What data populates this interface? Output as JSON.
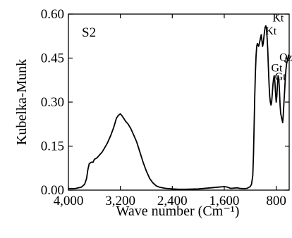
{
  "chart_data": {
    "type": "line",
    "title": "",
    "panel_label": "S2",
    "xlabel": "Wave number (Cm⁻¹)",
    "ylabel": "Kubelka-Munk",
    "xlim": [
      4000,
      600
    ],
    "ylim": [
      0,
      0.6
    ],
    "x_reversed": true,
    "grid": false,
    "x_ticks": [
      4000,
      3200,
      2400,
      1600,
      800
    ],
    "x_tick_labels": [
      "4,000",
      "3,200",
      "2,400",
      "1,600",
      "800"
    ],
    "y_ticks": [
      0,
      0.15,
      0.3,
      0.45,
      0.6
    ],
    "y_tick_labels": [
      "0.00",
      "0.15",
      "0.30",
      "0.45",
      "0.60"
    ],
    "annotations": [
      {
        "text": "Kt",
        "x": 770,
        "y": 0.575
      },
      {
        "text": "Kt",
        "x": 880,
        "y": 0.53
      },
      {
        "text": "Gt",
        "x": 790,
        "y": 0.405
      },
      {
        "text": "Gt",
        "x": 735,
        "y": 0.375
      },
      {
        "text": "Qz",
        "x": 650,
        "y": 0.44
      }
    ],
    "series": [
      {
        "color": "#000000",
        "x": [
          4000,
          3900,
          3800,
          3750,
          3720,
          3700,
          3680,
          3650,
          3620,
          3600,
          3560,
          3520,
          3480,
          3440,
          3400,
          3350,
          3300,
          3260,
          3230,
          3200,
          3180,
          3150,
          3120,
          3080,
          3040,
          3000,
          2950,
          2900,
          2850,
          2800,
          2750,
          2700,
          2650,
          2600,
          2550,
          2500,
          2450,
          2400,
          2300,
          2200,
          2000,
          1800,
          1700,
          1600,
          1550,
          1500,
          1450,
          1400,
          1360,
          1300,
          1250,
          1200,
          1180,
          1160,
          1150,
          1140,
          1130,
          1120,
          1110,
          1100,
          1090,
          1080,
          1070,
          1060,
          1050,
          1040,
          1030,
          1020,
          1010,
          1000,
          990,
          980,
          970,
          960,
          950,
          940,
          930,
          920,
          910,
          900,
          890,
          880,
          870,
          860,
          850,
          840,
          830,
          820,
          810,
          800,
          790,
          780,
          770,
          760,
          750,
          740,
          730,
          720,
          710,
          700,
          690,
          680,
          670,
          660,
          650,
          640,
          630,
          620,
          610,
          600
        ],
        "y": [
          0.005,
          0.005,
          0.01,
          0.02,
          0.04,
          0.07,
          0.09,
          0.095,
          0.095,
          0.105,
          0.11,
          0.12,
          0.13,
          0.145,
          0.16,
          0.185,
          0.215,
          0.245,
          0.255,
          0.26,
          0.255,
          0.245,
          0.235,
          0.225,
          0.21,
          0.19,
          0.165,
          0.13,
          0.095,
          0.065,
          0.04,
          0.025,
          0.015,
          0.01,
          0.008,
          0.006,
          0.005,
          0.004,
          0.003,
          0.003,
          0.004,
          0.008,
          0.01,
          0.012,
          0.01,
          0.006,
          0.007,
          0.008,
          0.006,
          0.005,
          0.006,
          0.012,
          0.02,
          0.05,
          0.12,
          0.22,
          0.32,
          0.4,
          0.46,
          0.49,
          0.5,
          0.495,
          0.49,
          0.5,
          0.51,
          0.52,
          0.53,
          0.51,
          0.49,
          0.5,
          0.52,
          0.54,
          0.555,
          0.56,
          0.55,
          0.52,
          0.48,
          0.42,
          0.36,
          0.32,
          0.3,
          0.29,
          0.3,
          0.33,
          0.36,
          0.38,
          0.39,
          0.37,
          0.33,
          0.3,
          0.32,
          0.36,
          0.39,
          0.38,
          0.34,
          0.29,
          0.26,
          0.25,
          0.24,
          0.23,
          0.26,
          0.3,
          0.34,
          0.38,
          0.41,
          0.43,
          0.44,
          0.45,
          0.46,
          0.46
        ]
      }
    ]
  }
}
